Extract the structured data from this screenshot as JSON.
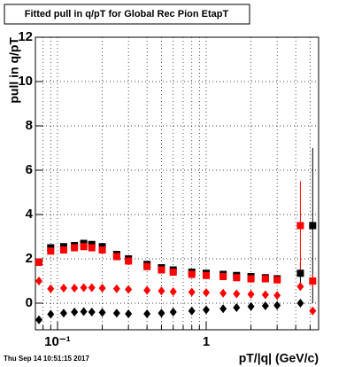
{
  "chart_data": {
    "type": "scatter",
    "title": "Fitted pull in q/pT for Global Rec Pion EtapT",
    "y_label": "pull in q/pT",
    "x_label": "pT/|q| (GeV/c)",
    "timestamp": "Thu Sep 14 10:51:15 2017",
    "log_x": true,
    "grid": true,
    "xlim": [
      0.071,
      5.7
    ],
    "ylim": [
      -1.2,
      12
    ],
    "xticks": [
      {
        "value": 0.1,
        "label": "10⁻¹"
      },
      1
    ],
    "xminorticks": [
      0.08,
      0.09,
      0.2,
      0.3,
      0.4,
      0.5,
      0.6,
      0.7,
      0.8,
      0.9,
      2,
      3,
      4,
      5
    ],
    "yticks": [
      0,
      2,
      4,
      6,
      8,
      10,
      12
    ],
    "x": [
      0.075,
      0.09,
      0.11,
      0.13,
      0.15,
      0.17,
      0.2,
      0.25,
      0.3,
      0.4,
      0.5,
      0.6,
      0.8,
      1.0,
      1.3,
      1.6,
      2.0,
      2.5,
      3.0,
      4.3,
      5.2
    ],
    "series": [
      {
        "marker": "square",
        "color": "#000000",
        "values": [
          1.85,
          2.5,
          2.55,
          2.6,
          2.7,
          2.65,
          2.55,
          2.2,
          2.0,
          1.75,
          1.6,
          1.5,
          1.4,
          1.35,
          1.3,
          1.25,
          1.2,
          1.15,
          1.1,
          1.35,
          3.5
        ],
        "errors": [
          0,
          0,
          0,
          0,
          0,
          0,
          0,
          0,
          0,
          0,
          0,
          0,
          0,
          0,
          0,
          0,
          0,
          0,
          0,
          0.5,
          3.5
        ]
      },
      {
        "marker": "square",
        "color": "#ff0000",
        "values": [
          1.85,
          2.35,
          2.4,
          2.5,
          2.55,
          2.5,
          2.4,
          2.1,
          1.9,
          1.65,
          1.5,
          1.4,
          1.3,
          1.25,
          1.2,
          1.15,
          1.1,
          1.1,
          1.05,
          3.5,
          1.0
        ],
        "errors": [
          0,
          0,
          0,
          0,
          0,
          0,
          0,
          0,
          0,
          0,
          0,
          0,
          0,
          0,
          0,
          0,
          0,
          0,
          0,
          2.0,
          0.3
        ]
      },
      {
        "marker": "diamond",
        "color": "#ff0000",
        "values": [
          1.0,
          0.65,
          0.68,
          0.68,
          0.7,
          0.7,
          0.68,
          0.65,
          0.62,
          0.58,
          0.55,
          0.52,
          0.5,
          0.48,
          0.45,
          0.42,
          0.4,
          0.38,
          0.35,
          0.75,
          -0.35
        ]
      },
      {
        "marker": "diamond",
        "color": "#000000",
        "values": [
          -0.75,
          -0.5,
          -0.45,
          -0.4,
          -0.38,
          -0.4,
          -0.42,
          -0.45,
          -0.48,
          -0.48,
          -0.45,
          -0.4,
          -0.35,
          -0.3,
          -0.25,
          -0.2,
          -0.15,
          -0.12,
          -0.1,
          0.0,
          null
        ]
      }
    ]
  }
}
